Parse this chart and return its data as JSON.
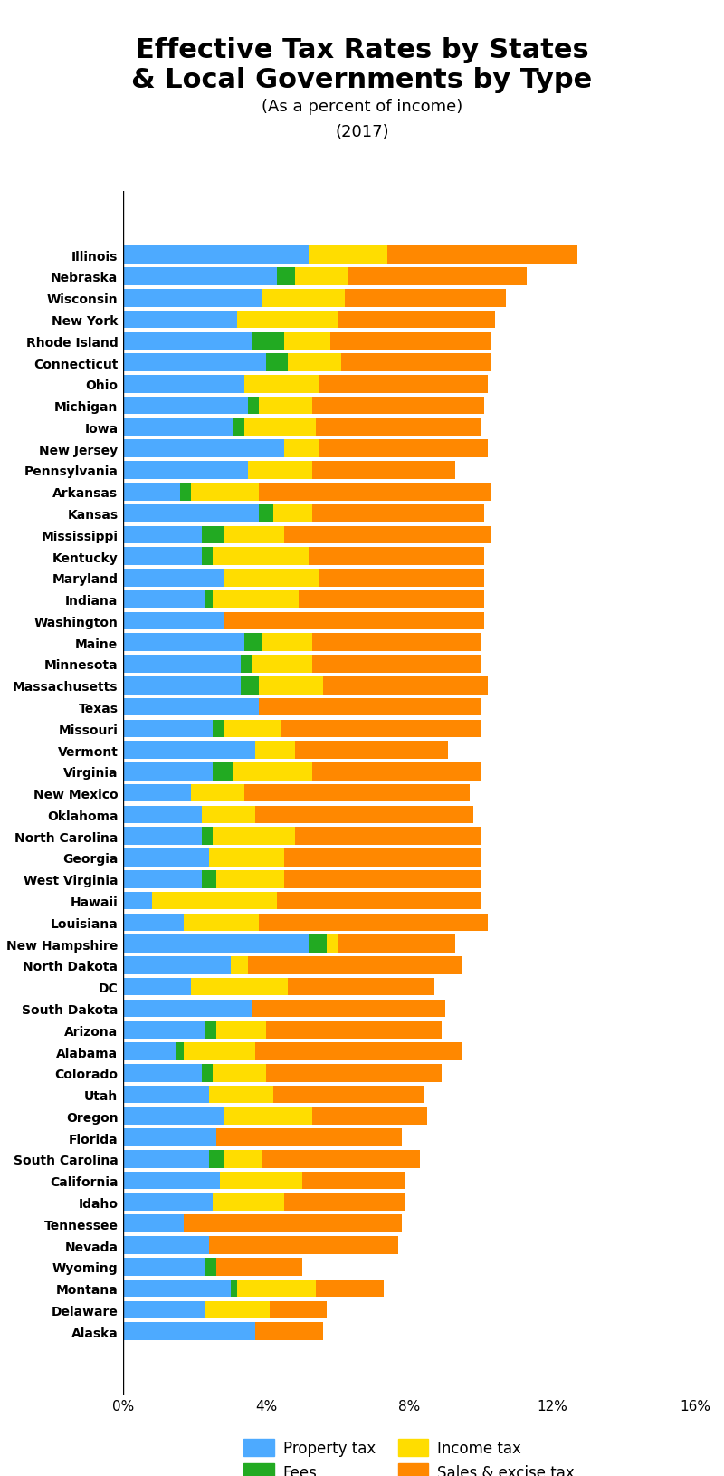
{
  "title": "Effective Tax Rates by States\n& Local Governments by Type",
  "subtitle": "(As a percent of income)",
  "year": "(2017)",
  "states": [
    "Illinois",
    "Nebraska",
    "Wisconsin",
    "New York",
    "Rhode Island",
    "Connecticut",
    "Ohio",
    "Michigan",
    "Iowa",
    "New Jersey",
    "Pennsylvania",
    "Arkansas",
    "Kansas",
    "Mississippi",
    "Kentucky",
    "Maryland",
    "Indiana",
    "Washington",
    "Maine",
    "Minnesota",
    "Massachusetts",
    "Texas",
    "Missouri",
    "Vermont",
    "Virginia",
    "New Mexico",
    "Oklahoma",
    "North Carolina",
    "Georgia",
    "West Virginia",
    "Hawaii",
    "Louisiana",
    "New Hampshire",
    "North Dakota",
    "DC",
    "South Dakota",
    "Arizona",
    "Alabama",
    "Colorado",
    "Utah",
    "Oregon",
    "Florida",
    "South Carolina",
    "California",
    "Idaho",
    "Tennessee",
    "Nevada",
    "Wyoming",
    "Montana",
    "Delaware",
    "Alaska"
  ],
  "property_tax": [
    5.2,
    4.3,
    3.9,
    3.2,
    3.6,
    4.0,
    3.4,
    3.5,
    3.1,
    4.5,
    3.5,
    1.6,
    3.8,
    2.2,
    2.2,
    2.8,
    2.3,
    2.8,
    3.4,
    3.3,
    3.3,
    3.8,
    2.5,
    3.7,
    2.5,
    1.9,
    2.2,
    2.2,
    2.4,
    2.2,
    0.8,
    1.7,
    5.2,
    3.0,
    1.9,
    3.6,
    2.3,
    1.5,
    2.2,
    2.4,
    2.8,
    2.6,
    2.4,
    2.7,
    2.5,
    1.7,
    2.4,
    2.3,
    3.0,
    2.3,
    3.7
  ],
  "fees": [
    0.0,
    0.5,
    0.0,
    0.0,
    0.9,
    0.6,
    0.0,
    0.3,
    0.3,
    0.0,
    0.0,
    0.3,
    0.4,
    0.6,
    0.3,
    0.0,
    0.2,
    0.0,
    0.5,
    0.3,
    0.5,
    0.0,
    0.3,
    0.0,
    0.6,
    0.0,
    0.0,
    0.3,
    0.0,
    0.4,
    0.0,
    0.0,
    0.5,
    0.0,
    0.0,
    0.0,
    0.3,
    0.2,
    0.3,
    0.0,
    0.0,
    0.0,
    0.4,
    0.0,
    0.0,
    0.0,
    0.0,
    0.3,
    0.2,
    0.0,
    0.0
  ],
  "income_tax": [
    2.2,
    1.5,
    2.3,
    2.8,
    1.3,
    1.5,
    2.1,
    1.5,
    2.0,
    1.0,
    1.8,
    1.9,
    1.1,
    1.7,
    2.7,
    2.7,
    2.4,
    0.0,
    1.4,
    1.7,
    1.8,
    0.0,
    1.6,
    1.1,
    2.2,
    1.5,
    1.5,
    2.3,
    2.1,
    1.9,
    3.5,
    2.1,
    0.3,
    0.5,
    2.7,
    0.0,
    1.4,
    2.0,
    1.5,
    1.8,
    2.5,
    0.0,
    1.1,
    2.3,
    2.0,
    0.0,
    0.0,
    0.0,
    2.2,
    1.8,
    0.0
  ],
  "sales_excise": [
    5.3,
    5.0,
    4.5,
    4.4,
    4.5,
    4.2,
    4.7,
    4.8,
    4.6,
    4.7,
    4.0,
    6.5,
    4.8,
    5.8,
    4.9,
    4.6,
    5.2,
    7.3,
    4.7,
    4.7,
    4.6,
    6.2,
    5.6,
    4.3,
    4.7,
    6.3,
    6.1,
    5.2,
    5.5,
    5.5,
    5.7,
    6.4,
    3.3,
    6.0,
    4.1,
    5.4,
    4.9,
    5.8,
    4.9,
    4.2,
    3.2,
    5.2,
    4.4,
    2.9,
    3.4,
    6.1,
    5.3,
    2.4,
    1.9,
    1.6,
    1.9
  ],
  "colors": {
    "property_tax": "#4DAAFF",
    "fees": "#22AA22",
    "income_tax": "#FFDD00",
    "sales_excise": "#FF8800"
  },
  "xlim": [
    0,
    16
  ],
  "xticks": [
    0,
    4,
    8,
    12,
    16
  ],
  "xtick_labels": [
    "0%",
    "4%",
    "8%",
    "12%",
    "16%"
  ],
  "background_color": "#FFFFFF",
  "bar_height": 0.82,
  "fig_width": 8.0,
  "fig_height": 16.31,
  "title_fontsize": 22,
  "subtitle_fontsize": 13,
  "ytick_fontsize": 10,
  "xtick_fontsize": 11
}
